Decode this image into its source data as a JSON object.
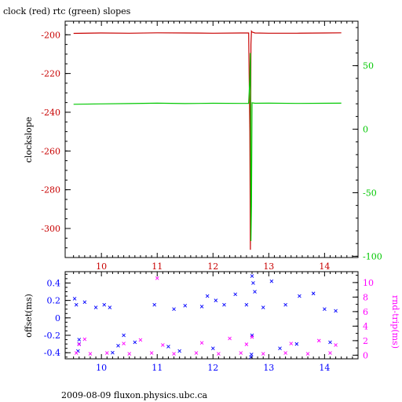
{
  "chart_data": [
    {
      "type": "line",
      "title": "clock (red) rtc (green) slopes",
      "xlabel": "",
      "ylabel": "clockslope",
      "y2label": "",
      "xlim": [
        9.35,
        14.6
      ],
      "ylim": [
        -315,
        -193
      ],
      "y2lim": [
        -101,
        85
      ],
      "grid": false,
      "xticks": [
        "10",
        "11",
        "12",
        "13",
        "14"
      ],
      "yticks": [
        "-200",
        "-220",
        "-240",
        "-260",
        "-280",
        "-300"
      ],
      "y2ticks": [
        "50",
        "0",
        "-50",
        "-100"
      ],
      "colors": {
        "clock": "#c80000",
        "rtc": "#00c800",
        "frame": "#000000",
        "x_tick_labels": "#c80000",
        "y_tick_labels": "#c80000",
        "y2_tick_labels": "#00c800"
      },
      "series": [
        {
          "axis": "left",
          "color": "#c80000",
          "x": [
            9.5,
            10.0,
            10.5,
            11.0,
            11.5,
            12.0,
            12.5,
            12.64,
            12.66,
            12.67,
            12.68,
            12.69,
            12.7,
            12.75,
            13.0,
            13.5,
            14.0,
            14.3
          ],
          "y": [
            -199.3,
            -199.1,
            -199.2,
            -199.0,
            -199.1,
            -199.2,
            -199.1,
            -199.1,
            -250,
            -311,
            -205,
            -198.2,
            -198.6,
            -199.1,
            -199.2,
            -199.2,
            -199.1,
            -199.0
          ]
        },
        {
          "axis": "right",
          "color": "#00c800",
          "x": [
            9.5,
            10.0,
            10.5,
            11.0,
            11.5,
            12.0,
            12.5,
            12.64,
            12.66,
            12.67,
            12.68,
            12.69,
            12.7,
            12.75,
            13.0,
            13.5,
            14.0,
            14.3
          ],
          "y": [
            19.6,
            19.9,
            20.2,
            20.5,
            20.2,
            20.4,
            20.3,
            20.3,
            40,
            60,
            -88,
            -60,
            20.8,
            20.4,
            20.5,
            20.3,
            20.4,
            20.5
          ]
        }
      ]
    },
    {
      "type": "scatter",
      "title": "",
      "xlabel": "",
      "ylabel": "offset(ms)",
      "y2label": "rnd-trip(ms)",
      "xlim": [
        9.35,
        14.6
      ],
      "ylim": [
        -0.47,
        0.53
      ],
      "y2lim": [
        -0.5,
        11.5
      ],
      "grid": false,
      "xticks": [
        "10",
        "11",
        "12",
        "13",
        "14"
      ],
      "yticks": [
        "0.4",
        "0.2",
        "0",
        "-0.2",
        "-0.4"
      ],
      "y2ticks": [
        "10",
        "8",
        "6",
        "4",
        "2",
        "0"
      ],
      "colors": {
        "offset": "#0000ff",
        "rnd_trip": "#ff00ff",
        "frame": "#000000",
        "tick_labels": "#0000ff",
        "y2_label": "#ff00ff"
      },
      "series": [
        {
          "axis": "left",
          "color": "#0000ff",
          "marker": "x",
          "x": [
            9.52,
            9.55,
            9.6,
            9.7,
            9.9,
            10.05,
            10.15,
            10.4,
            10.6,
            10.95,
            11.3,
            11.5,
            11.8,
            11.9,
            12.05,
            12.2,
            12.4,
            12.6,
            12.7,
            12.72,
            12.75,
            12.9,
            13.05,
            13.3,
            13.55,
            13.8,
            14.0,
            14.2,
            9.6,
            10.3,
            11.2,
            12.0,
            12.68,
            12.7,
            13.5,
            14.1,
            9.58,
            10.2,
            11.4,
            12.69,
            13.2
          ],
          "y": [
            0.22,
            0.15,
            -0.25,
            0.18,
            0.12,
            0.15,
            0.12,
            -0.2,
            -0.28,
            0.15,
            0.1,
            0.14,
            0.13,
            0.25,
            0.2,
            0.15,
            0.27,
            0.15,
            0.48,
            0.4,
            0.3,
            0.12,
            0.42,
            0.15,
            0.25,
            0.28,
            0.1,
            0.08,
            -0.3,
            -0.32,
            -0.33,
            -0.35,
            -0.45,
            -0.2,
            -0.3,
            -0.28,
            -0.38,
            -0.4,
            -0.38,
            -0.42,
            -0.35
          ]
        },
        {
          "axis": "right",
          "color": "#ff00ff",
          "marker": "x",
          "x": [
            11.0,
            9.55,
            9.8,
            10.1,
            10.5,
            10.9,
            11.3,
            11.7,
            12.1,
            12.5,
            12.7,
            12.9,
            13.3,
            13.7,
            14.1,
            9.6,
            10.4,
            11.1,
            11.8,
            12.6,
            13.4,
            14.2,
            9.7,
            10.7,
            12.3,
            13.9
          ],
          "y": [
            10.6,
            0.3,
            0.2,
            0.3,
            0.2,
            0.3,
            0.2,
            0.3,
            0.2,
            0.3,
            2.5,
            0.2,
            0.3,
            0.2,
            0.3,
            1.5,
            1.6,
            1.4,
            1.7,
            1.5,
            1.6,
            1.4,
            2.2,
            2.1,
            2.3,
            2.0
          ]
        }
      ]
    }
  ],
  "footer": "2009-08-09 fluxon.physics.ubc.ca"
}
